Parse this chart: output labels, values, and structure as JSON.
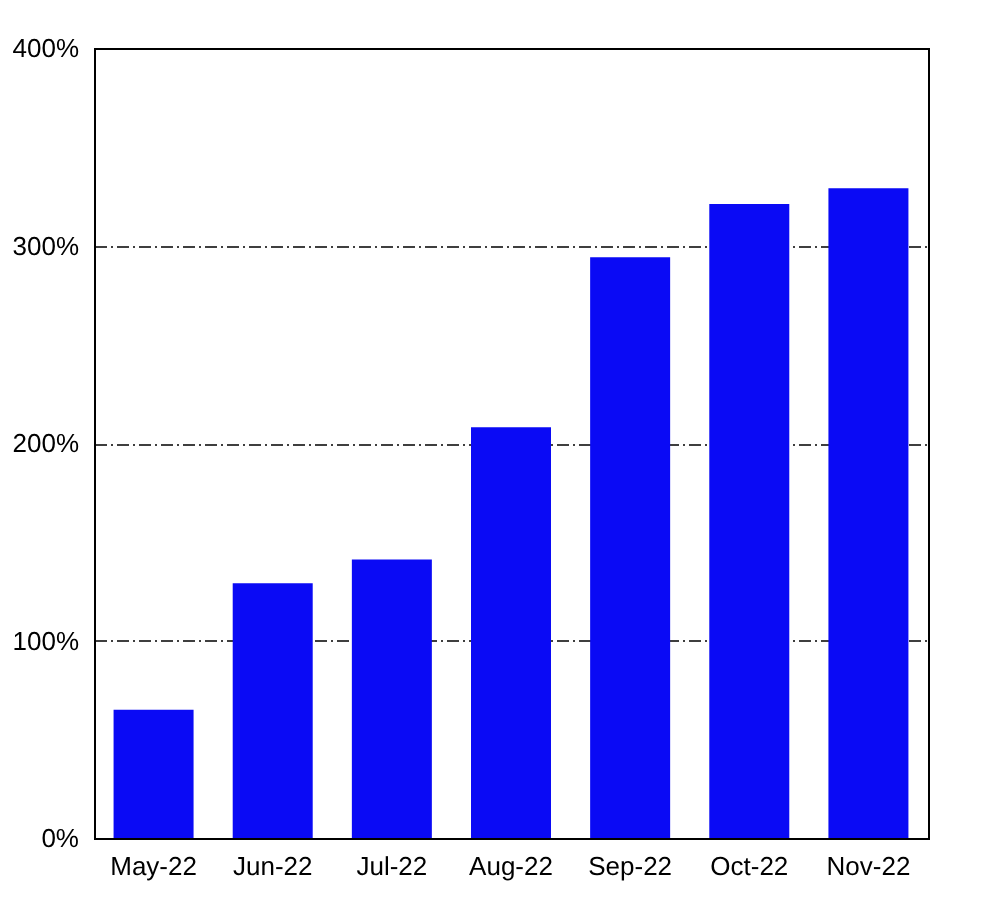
{
  "chart_data": {
    "type": "bar",
    "categories": [
      "May-22",
      "Jun-22",
      "Jul-22",
      "Aug-22",
      "Sep-22",
      "Oct-22",
      "Nov-22"
    ],
    "values": [
      65,
      129,
      141,
      208,
      294,
      321,
      329
    ],
    "color": "#0a0af5",
    "ylim": [
      0,
      400
    ],
    "yticks": [
      {
        "value": 0,
        "label": "0%"
      },
      {
        "value": 100,
        "label": "100%"
      },
      {
        "value": 200,
        "label": "200%"
      },
      {
        "value": 300,
        "label": "300%"
      },
      {
        "value": 400,
        "label": "400%"
      }
    ],
    "grid": "y"
  }
}
